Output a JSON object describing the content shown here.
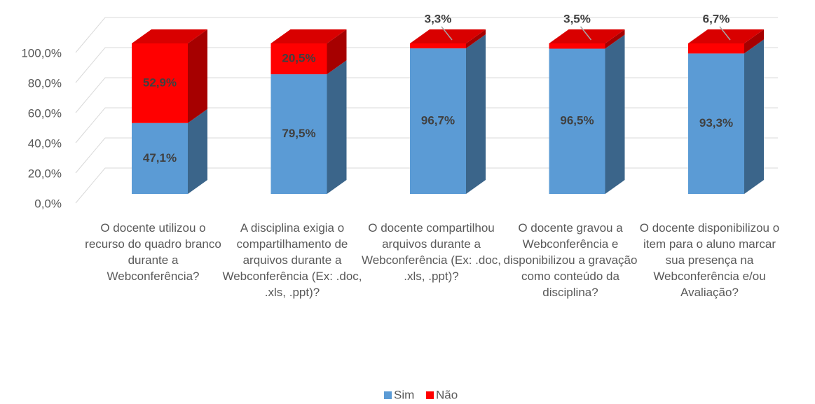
{
  "chart_data": {
    "type": "bar3d_stacked",
    "categories": [
      "O docente utilizou o recurso do quadro branco durante a Webconferência?",
      "A disciplina exigia o compartilhamento de arquivos durante a Webconferência (Ex: .doc, .xls, .ppt)?",
      "O docente compartilhou arquivos durante a Webconferência (Ex: .doc, .xls, .ppt)?",
      "O docente gravou a Webconferência e disponibilizou a gravação como conteúdo da disciplina?",
      "O docente disponibilizou o item para o aluno marcar sua presença na Webconferência e/ou Avaliação?"
    ],
    "series": [
      {
        "name": "Sim",
        "color": "#5b9bd5",
        "values": [
          47.1,
          79.5,
          96.7,
          96.5,
          93.3
        ],
        "value_labels": [
          "47,1%",
          "79,5%",
          "96,7%",
          "96,5%",
          "93,3%"
        ]
      },
      {
        "name": "Não",
        "color": "#ff0000",
        "values": [
          52.9,
          20.5,
          3.3,
          3.5,
          6.7
        ],
        "value_labels": [
          "52,9%",
          "20,5%",
          "3,3%",
          "3,5%",
          "6,7%"
        ]
      }
    ],
    "ylim": [
      0,
      100
    ],
    "yticks": [
      {
        "value": 0,
        "label": "0,0%"
      },
      {
        "value": 20,
        "label": "20,0%"
      },
      {
        "value": 40,
        "label": "40,0%"
      },
      {
        "value": 60,
        "label": "60,0%"
      },
      {
        "value": 80,
        "label": "80,0%"
      },
      {
        "value": 100,
        "label": "100,0%"
      }
    ],
    "grid": true,
    "legend": "bottom"
  }
}
